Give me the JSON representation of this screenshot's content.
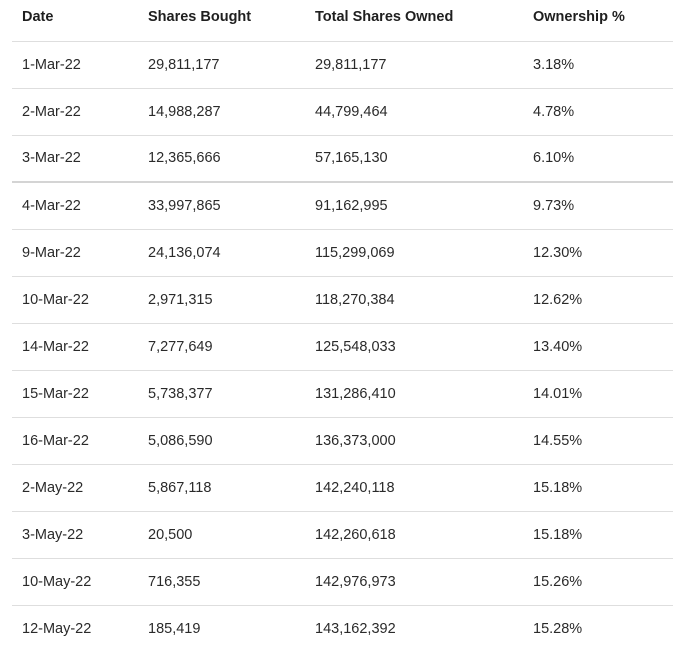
{
  "table": {
    "headers": [
      "Date",
      "Shares Bought",
      "Total Shares Owned",
      "Ownership %"
    ],
    "rows": [
      [
        "1-Mar-22",
        "29,811,177",
        "29,811,177",
        "3.18%"
      ],
      [
        "2-Mar-22",
        "14,988,287",
        "44,799,464",
        "4.78%"
      ],
      [
        "3-Mar-22",
        "12,365,666",
        "57,165,130",
        "6.10%"
      ],
      [
        "4-Mar-22",
        "33,997,865",
        "91,162,995",
        "9.73%"
      ],
      [
        "9-Mar-22",
        "24,136,074",
        "115,299,069",
        "12.30%"
      ],
      [
        "10-Mar-22",
        "2,971,315",
        "118,270,384",
        "12.62%"
      ],
      [
        "14-Mar-22",
        "7,277,649",
        "125,548,033",
        "13.40%"
      ],
      [
        "15-Mar-22",
        "5,738,377",
        "131,286,410",
        "14.01%"
      ],
      [
        "16-Mar-22",
        "5,086,590",
        "136,373,000",
        "14.55%"
      ],
      [
        "2-May-22",
        "5,867,118",
        "142,240,118",
        "15.18%"
      ],
      [
        "3-May-22",
        "20,500",
        "142,260,618",
        "15.18%"
      ],
      [
        "10-May-22",
        "716,355",
        "142,976,973",
        "15.26%"
      ],
      [
        "12-May-22",
        "185,419",
        "143,162,392",
        "15.28%"
      ]
    ]
  }
}
